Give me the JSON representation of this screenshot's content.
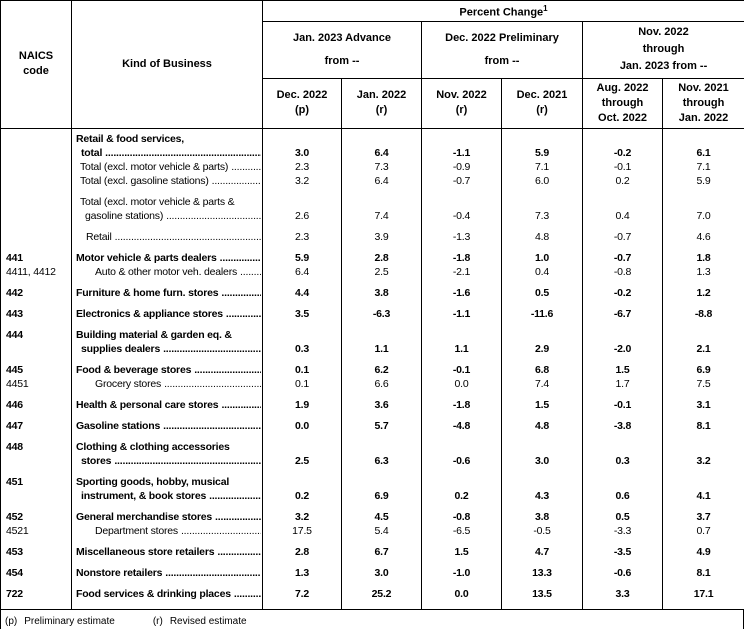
{
  "header": {
    "naics_lines": [
      "NAICS",
      "code"
    ],
    "kind_of_business": "Kind of Business",
    "percent_change_title": "Percent Change",
    "percent_change_sup": "1",
    "groups": [
      {
        "lines": [
          "Jan. 2023 Advance",
          "from --"
        ]
      },
      {
        "lines": [
          "Dec. 2022 Preliminary",
          "from --"
        ]
      },
      {
        "lines": [
          "Nov. 2022",
          "through",
          "Jan. 2023 from --"
        ]
      }
    ],
    "columns": [
      {
        "lines": [
          "Dec. 2022",
          "(p)"
        ]
      },
      {
        "lines": [
          "Jan. 2022",
          "(r)"
        ]
      },
      {
        "lines": [
          "Nov. 2022",
          "(r)"
        ]
      },
      {
        "lines": [
          "Dec. 2021",
          "(r)"
        ]
      },
      {
        "lines": [
          "Aug. 2022",
          "through",
          "Oct. 2022"
        ]
      },
      {
        "lines": [
          "Nov. 2021",
          "through",
          "Jan. 2022"
        ]
      }
    ]
  },
  "rows": [
    {
      "naics": "",
      "label_lines": [
        "Retail & food services,",
        "total"
      ],
      "indent": 0,
      "bold": true,
      "group_start": false,
      "values": [
        "3.0",
        "6.4",
        "-1.1",
        "5.9",
        "-0.2",
        "6.1"
      ]
    },
    {
      "naics": "",
      "label_lines": [
        "Total (excl. motor vehicle & parts)"
      ],
      "indent": 1,
      "bold": false,
      "group_start": false,
      "values": [
        "2.3",
        "7.3",
        "-0.9",
        "7.1",
        "-0.1",
        "7.1"
      ]
    },
    {
      "naics": "",
      "label_lines": [
        "Total (excl. gasoline stations)"
      ],
      "indent": 1,
      "bold": false,
      "group_start": false,
      "values": [
        "3.2",
        "6.4",
        "-0.7",
        "6.0",
        "0.2",
        "5.9"
      ]
    },
    {
      "naics": "",
      "label_lines": [
        "Total (excl. motor vehicle & parts &",
        "gasoline stations)"
      ],
      "indent": 1,
      "bold": false,
      "group_start": true,
      "values": [
        "2.6",
        "7.4",
        "-0.4",
        "7.3",
        "0.4",
        "7.0"
      ]
    },
    {
      "naics": "",
      "label_lines": [
        "Retail"
      ],
      "indent": 2,
      "bold": false,
      "group_start": true,
      "values": [
        "2.3",
        "3.9",
        "-1.3",
        "4.8",
        "-0.7",
        "4.6"
      ]
    },
    {
      "naics": "441",
      "label_lines": [
        "Motor vehicle & parts dealers"
      ],
      "indent": 0,
      "bold": true,
      "group_start": true,
      "values": [
        "5.9",
        "2.8",
        "-1.8",
        "1.0",
        "-0.7",
        "1.8"
      ]
    },
    {
      "naics": "4411, 4412",
      "label_lines": [
        "Auto & other motor veh. dealers"
      ],
      "indent": 3,
      "bold": false,
      "group_start": false,
      "values": [
        "6.4",
        "2.5",
        "-2.1",
        "0.4",
        "-0.8",
        "1.3"
      ]
    },
    {
      "naics": "442",
      "label_lines": [
        "Furniture & home furn. stores"
      ],
      "indent": 0,
      "bold": true,
      "group_start": true,
      "values": [
        "4.4",
        "3.8",
        "-1.6",
        "0.5",
        "-0.2",
        "1.2"
      ]
    },
    {
      "naics": "443",
      "label_lines": [
        "Electronics & appliance stores"
      ],
      "indent": 0,
      "bold": true,
      "group_start": true,
      "values": [
        "3.5",
        "-6.3",
        "-1.1",
        "-11.6",
        "-6.7",
        "-8.8"
      ]
    },
    {
      "naics": "444",
      "label_lines": [
        "Building material & garden eq. &",
        "supplies dealers"
      ],
      "indent": 0,
      "bold": true,
      "group_start": true,
      "values": [
        "0.3",
        "1.1",
        "1.1",
        "2.9",
        "-2.0",
        "2.1"
      ]
    },
    {
      "naics": "445",
      "label_lines": [
        "Food & beverage stores"
      ],
      "indent": 0,
      "bold": true,
      "group_start": true,
      "values": [
        "0.1",
        "6.2",
        "-0.1",
        "6.8",
        "1.5",
        "6.9"
      ]
    },
    {
      "naics": "4451",
      "label_lines": [
        "Grocery stores"
      ],
      "indent": 3,
      "bold": false,
      "group_start": false,
      "values": [
        "0.1",
        "6.6",
        "0.0",
        "7.4",
        "1.7",
        "7.5"
      ]
    },
    {
      "naics": "446",
      "label_lines": [
        "Health & personal care stores"
      ],
      "indent": 0,
      "bold": true,
      "group_start": true,
      "values": [
        "1.9",
        "3.6",
        "-1.8",
        "1.5",
        "-0.1",
        "3.1"
      ]
    },
    {
      "naics": "447",
      "label_lines": [
        "Gasoline stations"
      ],
      "indent": 0,
      "bold": true,
      "group_start": true,
      "values": [
        "0.0",
        "5.7",
        "-4.8",
        "4.8",
        "-3.8",
        "8.1"
      ]
    },
    {
      "naics": "448",
      "label_lines": [
        "Clothing & clothing accessories",
        "stores"
      ],
      "indent": 0,
      "bold": true,
      "group_start": true,
      "values": [
        "2.5",
        "6.3",
        "-0.6",
        "3.0",
        "0.3",
        "3.2"
      ]
    },
    {
      "naics": "451",
      "label_lines": [
        "Sporting goods, hobby, musical",
        "instrument, & book stores"
      ],
      "indent": 0,
      "bold": true,
      "group_start": true,
      "values": [
        "0.2",
        "6.9",
        "0.2",
        "4.3",
        "0.6",
        "4.1"
      ]
    },
    {
      "naics": "452",
      "label_lines": [
        "General merchandise stores"
      ],
      "indent": 0,
      "bold": true,
      "group_start": true,
      "values": [
        "3.2",
        "4.5",
        "-0.8",
        "3.8",
        "0.5",
        "3.7"
      ]
    },
    {
      "naics": "4521",
      "label_lines": [
        "Department stores"
      ],
      "indent": 3,
      "bold": false,
      "group_start": false,
      "values": [
        "17.5",
        "5.4",
        "-6.5",
        "-0.5",
        "-3.3",
        "0.7"
      ]
    },
    {
      "naics": "453",
      "label_lines": [
        "Miscellaneous store retailers"
      ],
      "indent": 0,
      "bold": true,
      "group_start": true,
      "values": [
        "2.8",
        "6.7",
        "1.5",
        "4.7",
        "-3.5",
        "4.9"
      ]
    },
    {
      "naics": "454",
      "label_lines": [
        "Nonstore retailers"
      ],
      "indent": 0,
      "bold": true,
      "group_start": true,
      "values": [
        "1.3",
        "3.0",
        "-1.0",
        "13.3",
        "-0.6",
        "8.1"
      ]
    },
    {
      "naics": "722",
      "label_lines": [
        "Food services & drinking places"
      ],
      "indent": 0,
      "bold": true,
      "group_start": true,
      "values": [
        "7.2",
        "25.2",
        "0.0",
        "13.5",
        "3.3",
        "17.1"
      ]
    }
  ],
  "footnotes": [
    {
      "symbol": "(p)",
      "text": "Preliminary estimate"
    },
    {
      "symbol": "(r)",
      "text": "Revised estimate"
    }
  ]
}
